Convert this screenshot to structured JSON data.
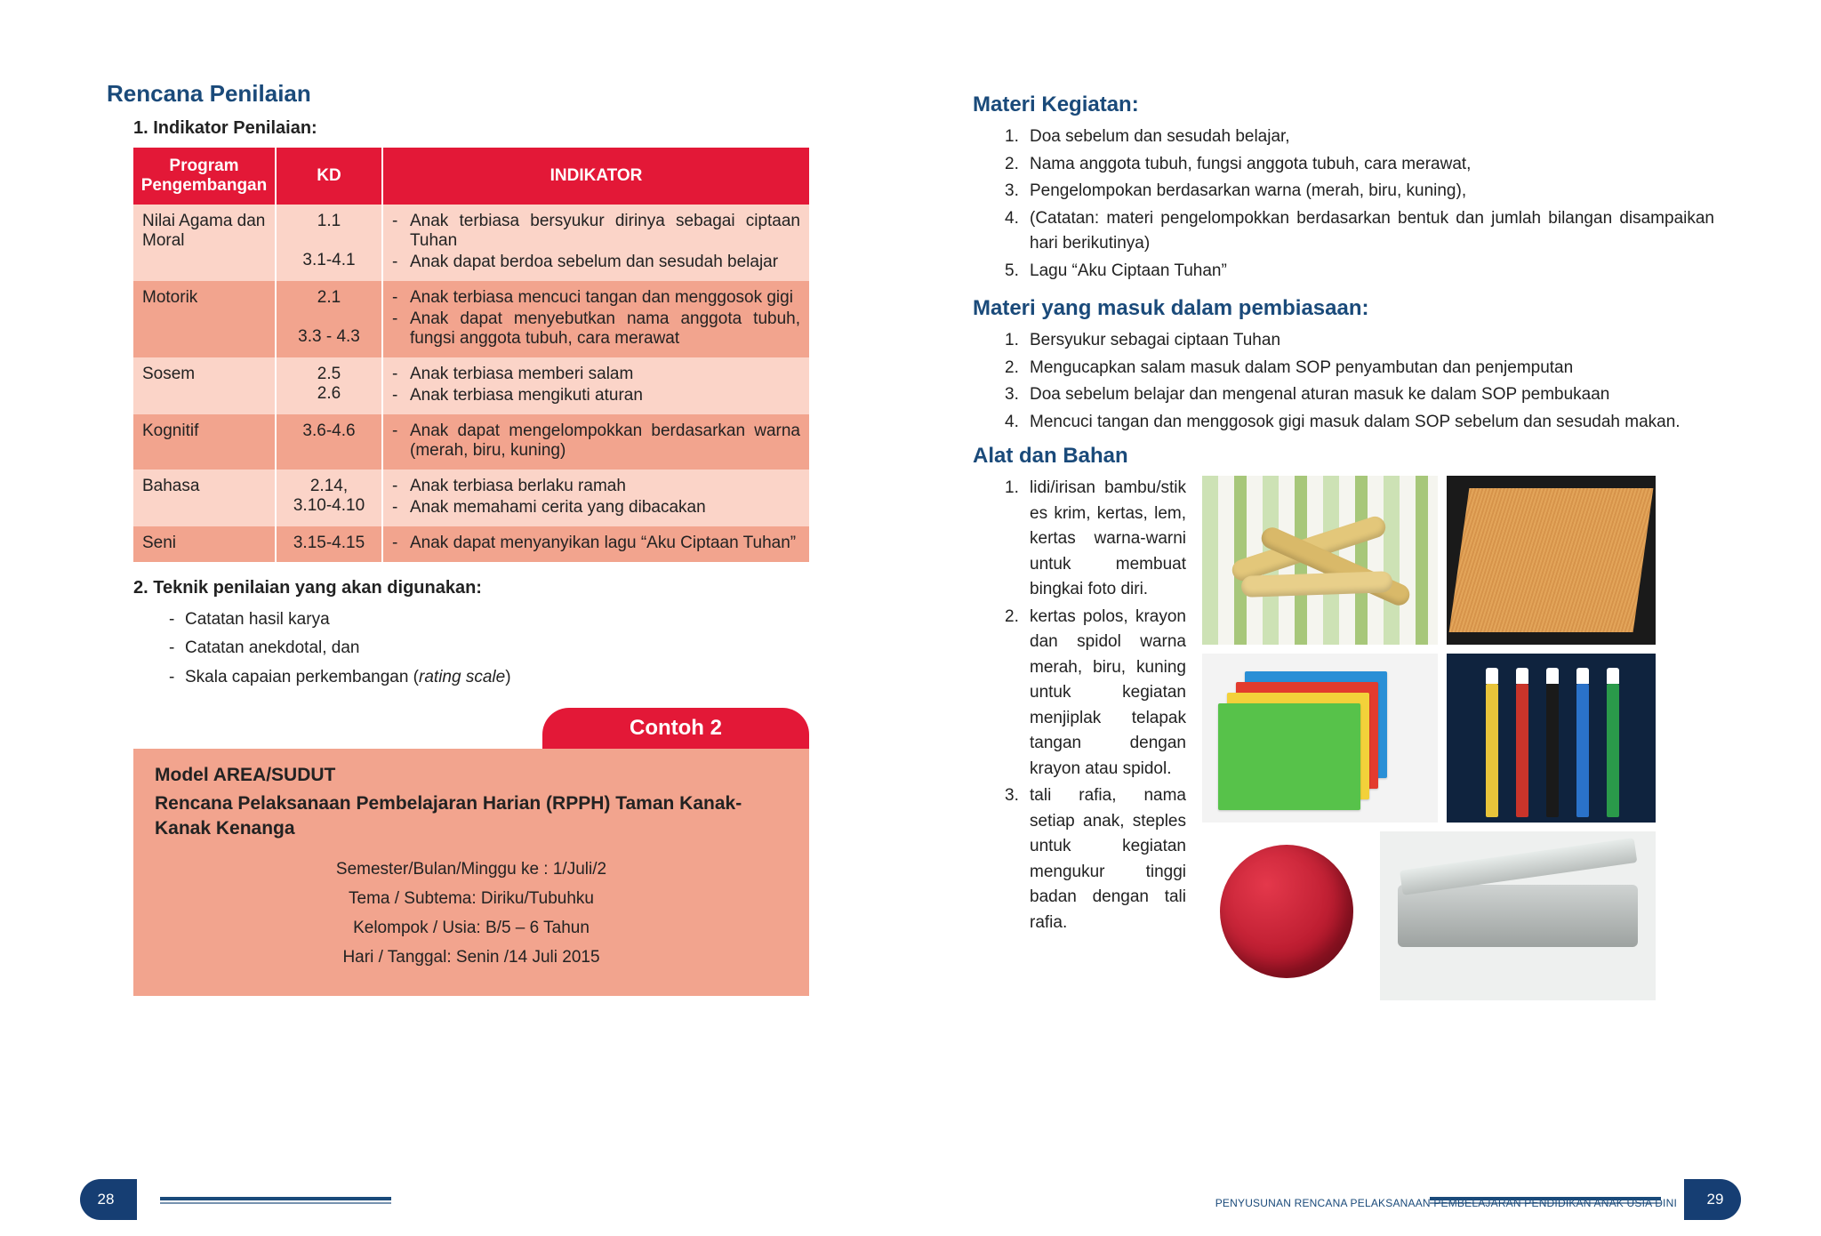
{
  "left": {
    "heading": "Rencana Penilaian",
    "sub1": "1.  Indikator Penilaian:",
    "table": {
      "headers": {
        "prog": "Program Pengembangan",
        "kd": "KD",
        "ind": "INDIKATOR"
      },
      "rows": [
        {
          "shade": "light",
          "prog": "Nilai Agama dan Moral",
          "kd": "1.1\n\n3.1-4.1",
          "ind": [
            "Anak terbiasa bersyukur dirinya sebagai ciptaan Tuhan",
            "Anak dapat berdoa sebelum dan sesudah belajar"
          ]
        },
        {
          "shade": "dark",
          "prog": "Motorik",
          "kd": "2.1\n\n3.3 - 4.3",
          "ind": [
            "Anak terbiasa mencuci tangan dan menggosok gigi",
            "Anak dapat menyebutkan nama anggota tubuh, fungsi anggota tubuh, cara merawat"
          ]
        },
        {
          "shade": "light",
          "prog": "Sosem",
          "kd": "2.5\n2.6",
          "ind": [
            "Anak terbiasa memberi salam",
            "Anak terbiasa mengikuti aturan"
          ]
        },
        {
          "shade": "dark",
          "prog": "Kognitif",
          "kd": "3.6-4.6",
          "ind": [
            "Anak dapat mengelompokkan berdasarkan warna (merah, biru, kuning)"
          ]
        },
        {
          "shade": "light",
          "prog": "Bahasa",
          "kd": "2.14,\n3.10-4.10",
          "ind": [
            "Anak terbiasa berlaku ramah",
            "Anak memahami cerita yang dibacakan"
          ]
        },
        {
          "shade": "dark",
          "prog": "Seni",
          "kd": "3.15-4.15",
          "ind": [
            "Anak dapat menyanyikan lagu “Aku Ciptaan Tuhan”"
          ]
        }
      ]
    },
    "sub2": "2.  Teknik penilaian yang akan digunakan:",
    "teknik": [
      "Catatan hasil karya",
      "Catatan anekdotal, dan",
      "Skala capaian perkembangan (rating scale)"
    ],
    "contoh_label": "Contoh 2",
    "model": {
      "t1": "Model AREA/SUDUT",
      "t2": "Rencana Pelaksanaan Pembelajaran Harian (RPPH) Taman Kanak-Kanak Kenanga",
      "m1": "Semester/Bulan/Minggu ke : 1/Juli/2",
      "m2": "Tema / Subtema: Diriku/Tubuhku",
      "m3": "Kelompok / Usia: B/5 – 6 Tahun",
      "m4": "Hari / Tanggal: Senin /14 Juli 2015"
    },
    "page_no": "28",
    "teknik_italic": "rating scale"
  },
  "right": {
    "h1": "Materi Kegiatan:",
    "list1": [
      "Doa sebelum dan sesudah belajar,",
      "Nama anggota tubuh, fungsi anggota tubuh, cara merawat,",
      "Pengelompokan berdasarkan warna (merah, biru, kuning),",
      "(Catatan: materi pengelompokkan berdasarkan bentuk dan jumlah bilangan disampaikan hari berikutinya)",
      "Lagu “Aku Ciptaan Tuhan”"
    ],
    "h2": "Materi yang masuk dalam pembiasaan:",
    "list2": [
      "Bersyukur sebagai ciptaan Tuhan",
      "Mengucapkan salam masuk dalam SOP penyambutan dan penjemputan",
      "Doa sebelum belajar dan mengenal aturan masuk ke dalam SOP pembukaan",
      "Mencuci tangan dan menggosok gigi masuk dalam SOP sebelum dan sesudah makan."
    ],
    "h3": "Alat dan Bahan",
    "list3": [
      "lidi/irisan bambu/stik es krim, kertas, lem, kertas warna-warni untuk membuat bingkai foto diri.",
      "kertas polos, krayon dan spidol warna merah, biru, kuning untuk kegiatan menjiplak telapak tangan dengan krayon atau spidol.",
      "tali rafia, nama setiap anak, steples untuk kegiatan mengukur tinggi badan dengan tali rafia."
    ],
    "footer_caption": "PENYUSUNAN RENCANA PELAKSANAAN PEMBELAJARAN PENDIDIKAN ANAK USIA DINI",
    "page_no": "29"
  }
}
